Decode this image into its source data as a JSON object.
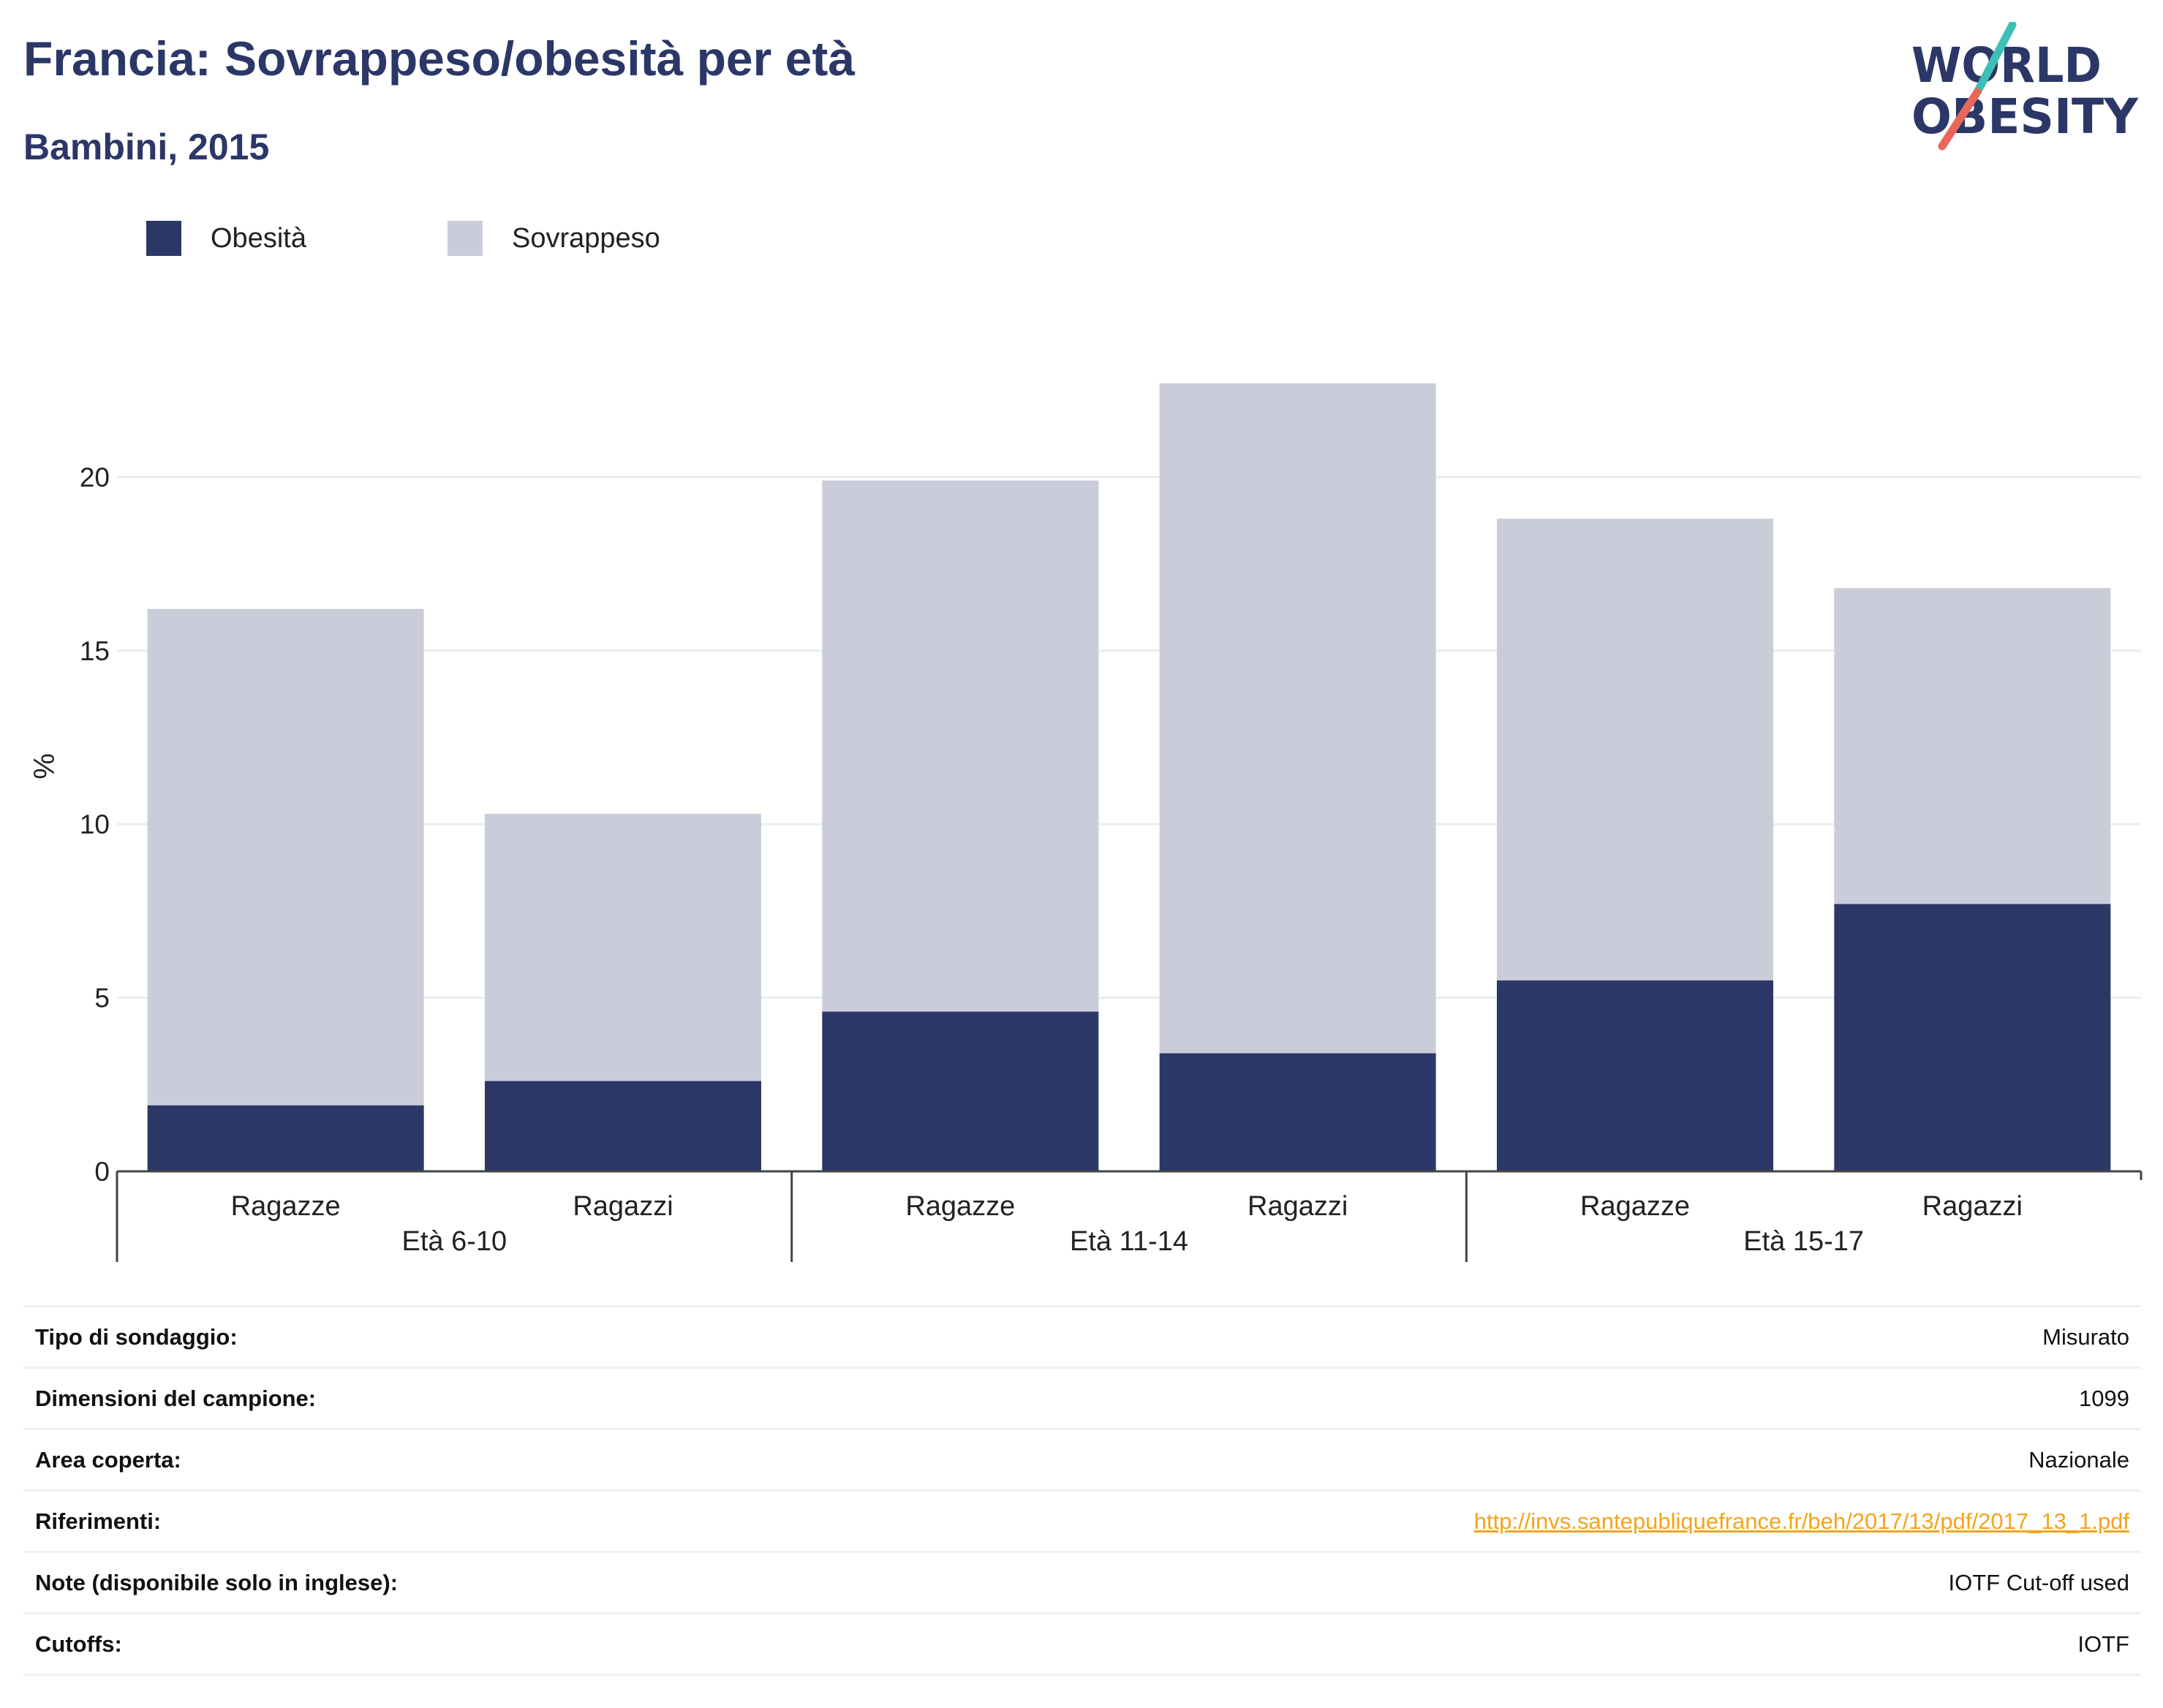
{
  "header": {
    "title": "Francia: Sovrappeso/obesità per età",
    "subtitle": "Bambini, 2015"
  },
  "logo": {
    "line1": "WORLD",
    "line2": "OBESITY",
    "colors": {
      "text": "#2b3766",
      "slash_top": "#3cbfb4",
      "slash_bottom": "#e8675a"
    }
  },
  "colors": {
    "obesity": "#2b3766",
    "overweight": "#cacdd9",
    "grid": "#ebedf2",
    "axis": "#444444",
    "link": "#f2a51a"
  },
  "chart_data": {
    "type": "bar",
    "stacked": true,
    "ylabel": "%",
    "ylim": [
      0,
      23
    ],
    "yticks": [
      0,
      5,
      10,
      15,
      20
    ],
    "grid": true,
    "legend_position": "top-left",
    "groups": [
      {
        "label": "Età 6-10",
        "categories": [
          "Ragazze",
          "Ragazzi"
        ]
      },
      {
        "label": "Età 11-14",
        "categories": [
          "Ragazze",
          "Ragazzi"
        ]
      },
      {
        "label": "Età 15-17",
        "categories": [
          "Ragazze",
          "Ragazzi"
        ]
      }
    ],
    "series": [
      {
        "name": "Obesità",
        "values": [
          1.9,
          2.6,
          4.6,
          3.4,
          5.5,
          7.7
        ]
      },
      {
        "name": "Sovrappeso",
        "values": [
          14.3,
          7.7,
          15.3,
          19.3,
          13.3,
          9.1
        ]
      }
    ]
  },
  "info": [
    {
      "key": "Tipo di sondaggio:",
      "value": "Misurato"
    },
    {
      "key": "Dimensioni del campione:",
      "value": "1099"
    },
    {
      "key": "Area coperta:",
      "value": "Nazionale"
    },
    {
      "key": "Riferimenti:",
      "value": "http://invs.santepubliquefrance.fr/beh/2017/13/pdf/2017_13_1.pdf",
      "link": true
    },
    {
      "key": "Note (disponibile solo in inglese):",
      "value": "IOTF Cut-off used"
    },
    {
      "key": "Cutoffs:",
      "value": "IOTF"
    }
  ]
}
